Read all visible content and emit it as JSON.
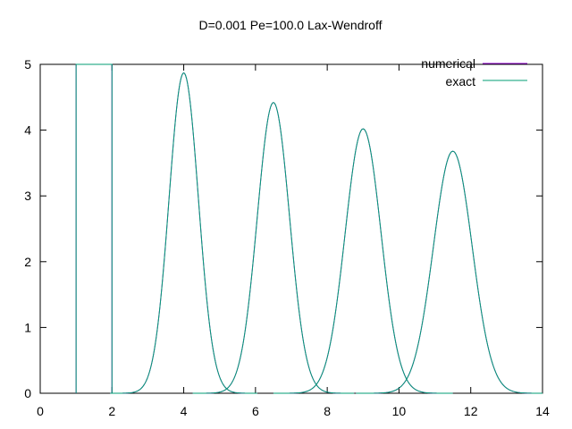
{
  "chart_data": {
    "type": "line",
    "title": "D=0.001 Pe=100.0 Lax-Wendroff",
    "xlabel": "",
    "ylabel": "",
    "xlim": [
      0,
      14
    ],
    "ylim": [
      0,
      5
    ],
    "xticks": [
      0,
      2,
      4,
      6,
      8,
      10,
      12,
      14
    ],
    "yticks": [
      0,
      1,
      2,
      3,
      4,
      5
    ],
    "grid": false,
    "legend_position": "top-right",
    "series": [
      {
        "name": "numerical",
        "color": "#9400d3",
        "pulses": [
          {
            "kind": "box",
            "x_start": 1.0,
            "x_end": 2.0,
            "height": 5.0
          },
          {
            "kind": "gaussian",
            "center": 4.0,
            "peak": 4.87,
            "sigma": 0.41
          },
          {
            "kind": "gaussian",
            "center": 6.5,
            "peak": 4.42,
            "sigma": 0.45
          },
          {
            "kind": "gaussian",
            "center": 9.0,
            "peak": 4.02,
            "sigma": 0.5
          },
          {
            "kind": "gaussian",
            "center": 11.5,
            "peak": 3.68,
            "sigma": 0.54
          }
        ]
      },
      {
        "name": "exact",
        "color": "#009e73",
        "pulses": [
          {
            "kind": "box",
            "x_start": 1.0,
            "x_end": 2.0,
            "height": 5.0
          },
          {
            "kind": "gaussian",
            "center": 4.0,
            "peak": 4.87,
            "sigma": 0.41
          },
          {
            "kind": "gaussian",
            "center": 6.5,
            "peak": 4.42,
            "sigma": 0.45
          },
          {
            "kind": "gaussian",
            "center": 9.0,
            "peak": 4.02,
            "sigma": 0.5
          },
          {
            "kind": "gaussian",
            "center": 11.5,
            "peak": 3.68,
            "sigma": 0.54
          }
        ]
      }
    ]
  }
}
